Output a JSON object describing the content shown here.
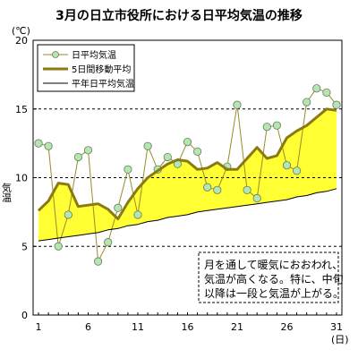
{
  "chart_data": {
    "type": "line",
    "title": "3月の日立市役所における日平均気温の推移",
    "ylabel": "気温",
    "y_unit": "(℃)",
    "x_unit": "(日)",
    "ylim": [
      0,
      20
    ],
    "yticks": [
      0,
      5,
      10,
      15,
      20
    ],
    "xlim": [
      1,
      31
    ],
    "xticks": [
      1,
      6,
      11,
      16,
      21,
      26,
      31
    ],
    "dashed_gridlines_y": [
      5,
      10,
      15
    ],
    "legend_position": "top-left",
    "x": [
      1,
      2,
      3,
      4,
      5,
      6,
      7,
      8,
      9,
      10,
      11,
      12,
      13,
      14,
      15,
      16,
      17,
      18,
      19,
      20,
      21,
      22,
      23,
      24,
      25,
      26,
      27,
      28,
      29,
      30,
      31
    ],
    "series": [
      {
        "name": "日平均気温",
        "style": "line-with-markers",
        "color": "#9a8a2a",
        "marker_fill": "#b4e6b4",
        "values": [
          12.5,
          12.3,
          5.0,
          7.3,
          11.5,
          12.0,
          3.9,
          5.3,
          7.8,
          10.6,
          7.3,
          12.3,
          10.6,
          11.5,
          11.0,
          12.6,
          11.9,
          9.3,
          9.1,
          10.8,
          15.3,
          9.1,
          8.5,
          13.7,
          13.8,
          10.9,
          10.5,
          15.5,
          16.5,
          16.2,
          15.3
        ]
      },
      {
        "name": "5日間移動平均",
        "style": "thick-line",
        "color": "#8b7a12",
        "values": [
          7.6,
          8.3,
          9.6,
          9.5,
          7.9,
          8.0,
          8.1,
          7.7,
          7.0,
          8.2,
          9.2,
          10.0,
          10.5,
          11.0,
          11.3,
          11.2,
          10.6,
          10.7,
          11.1,
          10.6,
          10.6,
          11.4,
          12.2,
          11.4,
          11.6,
          12.9,
          13.4,
          13.8,
          14.4,
          15.0,
          14.9
        ]
      },
      {
        "name": "平年日平均気温",
        "style": "thin-line",
        "color": "#000000",
        "values": [
          5.4,
          5.5,
          5.6,
          5.7,
          5.8,
          5.9,
          6.0,
          6.2,
          6.3,
          6.5,
          6.6,
          6.8,
          6.9,
          7.1,
          7.2,
          7.3,
          7.5,
          7.6,
          7.7,
          7.8,
          7.9,
          8.0,
          8.1,
          8.2,
          8.3,
          8.4,
          8.6,
          8.7,
          8.9,
          9.0,
          9.2
        ]
      }
    ],
    "fill_between": {
      "upper": "5日間移動平均",
      "lower": "平年日平均気温",
      "color": "#ffff33"
    },
    "annotation": {
      "lines": [
        "月を通して暖気におおわれ、",
        "気温が高くなる。特に、中旬",
        "以降は一段と気温が上がる。"
      ]
    }
  }
}
